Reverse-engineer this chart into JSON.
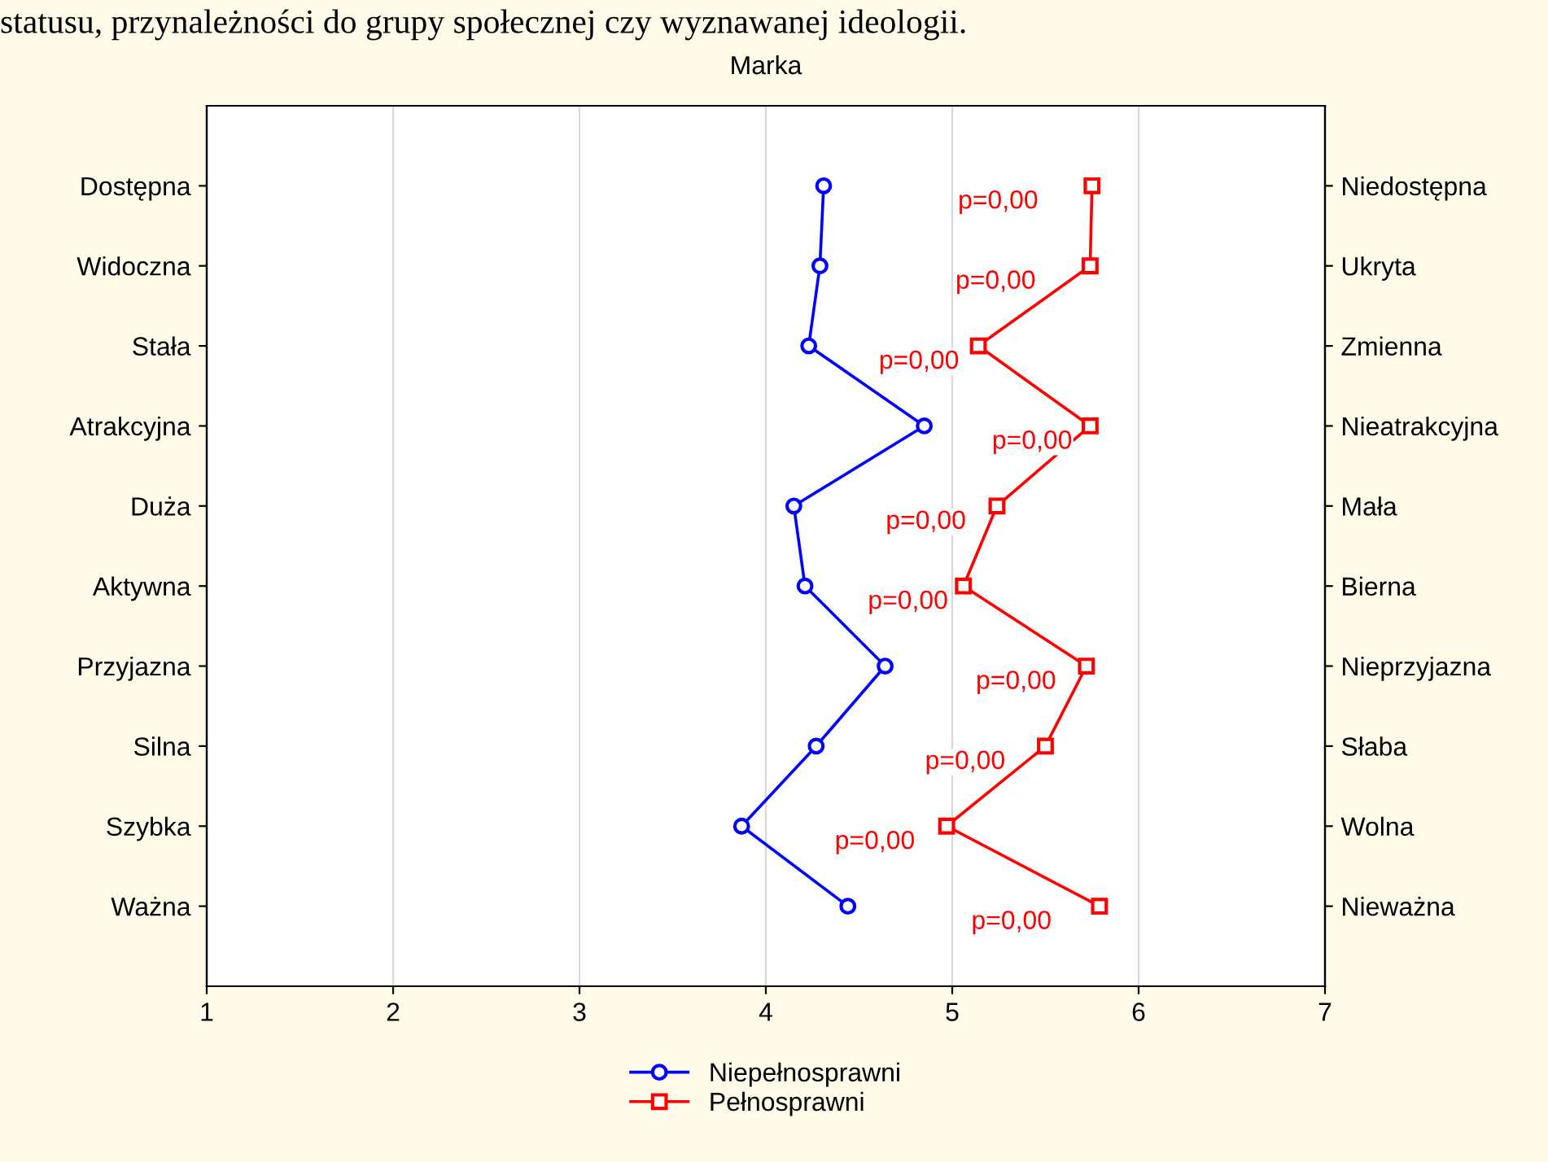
{
  "chart_data": {
    "type": "line",
    "orientation": "horizontal",
    "title": "Marka",
    "categories": [
      "Dostępna",
      "Widoczna",
      "Stała",
      "Atrakcyjna",
      "Duża",
      "Aktywna",
      "Przyjazna",
      "Silna",
      "Szybka",
      "Ważna"
    ],
    "y2_categories": [
      "Niedostępna",
      "Ukryta",
      "Zmienna",
      "Nieatrakcyjna",
      "Mała",
      "Bierna",
      "Nieprzyjazna",
      "Słaba",
      "Wolna",
      "Nieważna"
    ],
    "series": [
      {
        "name": "Niepełnosprawni",
        "color": "#0000ff",
        "marker": "circle",
        "values": [
          4.31,
          4.29,
          4.23,
          4.85,
          4.15,
          4.21,
          4.64,
          4.27,
          3.87,
          4.44
        ]
      },
      {
        "name": "Pełnosprawni",
        "color": "#ff0000",
        "marker": "square",
        "values": [
          5.75,
          5.74,
          5.14,
          5.74,
          5.24,
          5.06,
          5.72,
          5.5,
          4.97,
          5.79
        ]
      }
    ],
    "xlim": [
      1,
      7
    ],
    "xticks": [
      1,
      2,
      3,
      4,
      5,
      6,
      7
    ],
    "grid": "x",
    "legend": "bottom",
    "line_style": "solid",
    "annotations": [
      "statusu, przynależności do grupy społecznej czy wyznawanej ideologii.",
      "p=0,00",
      "p=0,00",
      "p=0,00",
      "p=0,00",
      "p=0,00",
      "p=0,00",
      "p=0,00",
      "p=0,00",
      "p=0,00",
      "p=0,00"
    ]
  }
}
